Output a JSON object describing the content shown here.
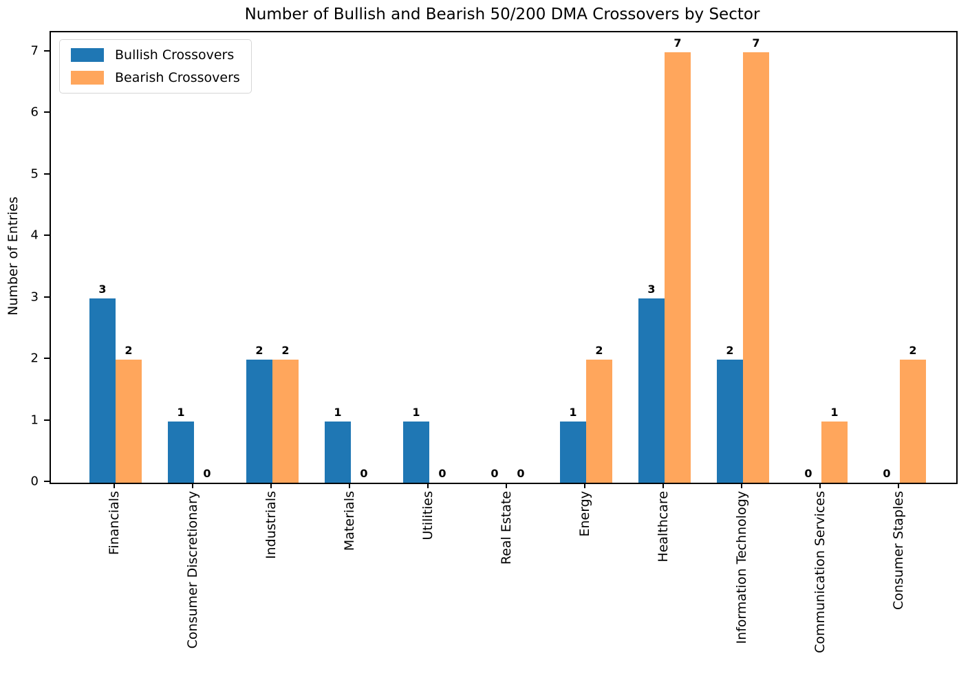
{
  "figure": {
    "background": "#ffffff",
    "text_color": "#000000"
  },
  "chart_data": {
    "type": "bar",
    "title": "Number of Bullish and Bearish 50/200 DMA Crossovers by Sector",
    "xlabel": "",
    "ylabel": "Number of Entries",
    "categories": [
      "Financials",
      "Consumer Discretionary",
      "Industrials",
      "Materials",
      "Utilities",
      "Real Estate",
      "Energy",
      "Healthcare",
      "Information Technology",
      "Communication Services",
      "Consumer Staples"
    ],
    "series": [
      {
        "name": "Bullish Crossovers",
        "color": "#1f77b4",
        "values": [
          3,
          1,
          2,
          1,
          1,
          0,
          1,
          3,
          2,
          0,
          0
        ]
      },
      {
        "name": "Bearish Crossovers",
        "color": "#ffa65c",
        "values": [
          2,
          0,
          2,
          0,
          0,
          0,
          2,
          7,
          7,
          1,
          2
        ]
      }
    ],
    "bar_value_labels": true,
    "yticks": [
      0,
      1,
      2,
      3,
      4,
      5,
      6,
      7
    ],
    "ylim": [
      0,
      7.32
    ],
    "grid": false,
    "legend_position": "upper left",
    "axis_color": "#000000"
  }
}
